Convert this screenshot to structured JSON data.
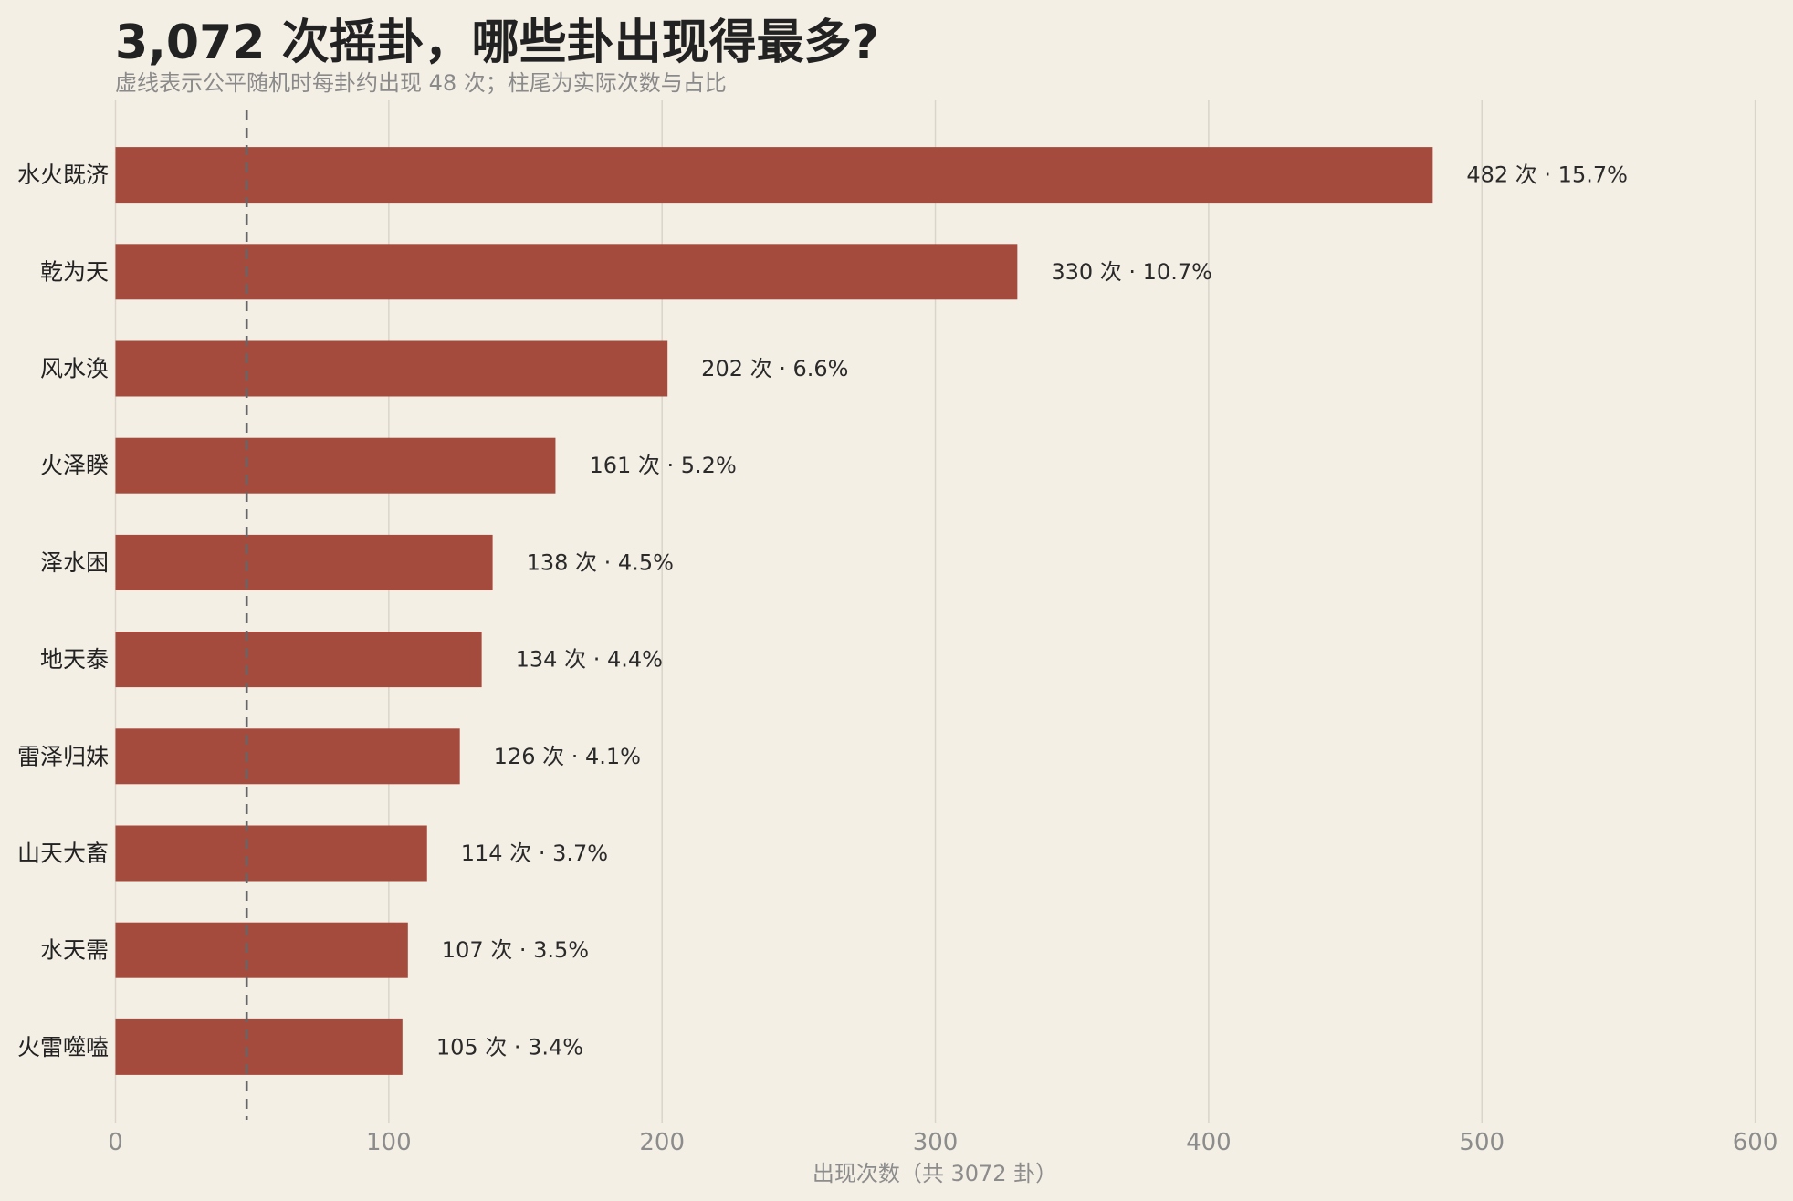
{
  "chart_data": {
    "type": "bar",
    "orientation": "horizontal",
    "title": "3,072 次摇卦，哪些卦出现得最多?",
    "subtitle": "虚线表示公平随机时每卦约出现 48 次；柱尾为实际次数与占比",
    "xlabel": "出现次数（共 3072 卦）",
    "categories": [
      "水火既济",
      "乾为天",
      "风水涣",
      "火泽睽",
      "泽水困",
      "地天泰",
      "雷泽归妹",
      "山天大畜",
      "水天需",
      "火雷噬嗑"
    ],
    "values": [
      482,
      330,
      202,
      161,
      138,
      134,
      126,
      114,
      107,
      105
    ],
    "data_labels": [
      "482 次 · 15.7%",
      "330 次 · 10.7%",
      "202 次 · 6.6%",
      "161 次 · 5.2%",
      "138 次 · 4.5%",
      "134 次 · 4.4%",
      "126 次 · 4.1%",
      "114 次 · 3.7%",
      "107 次 · 3.5%",
      "105 次 · 3.4%"
    ],
    "xlim": [
      0,
      600
    ],
    "xticks": [
      0,
      100,
      200,
      300,
      400,
      500,
      600
    ],
    "reference_line": 48,
    "grid": true
  },
  "colors": {
    "background": "#f4efe5",
    "bar": "#a54b3e",
    "grid": "#d9d5cb",
    "reference_line": "#666666"
  }
}
